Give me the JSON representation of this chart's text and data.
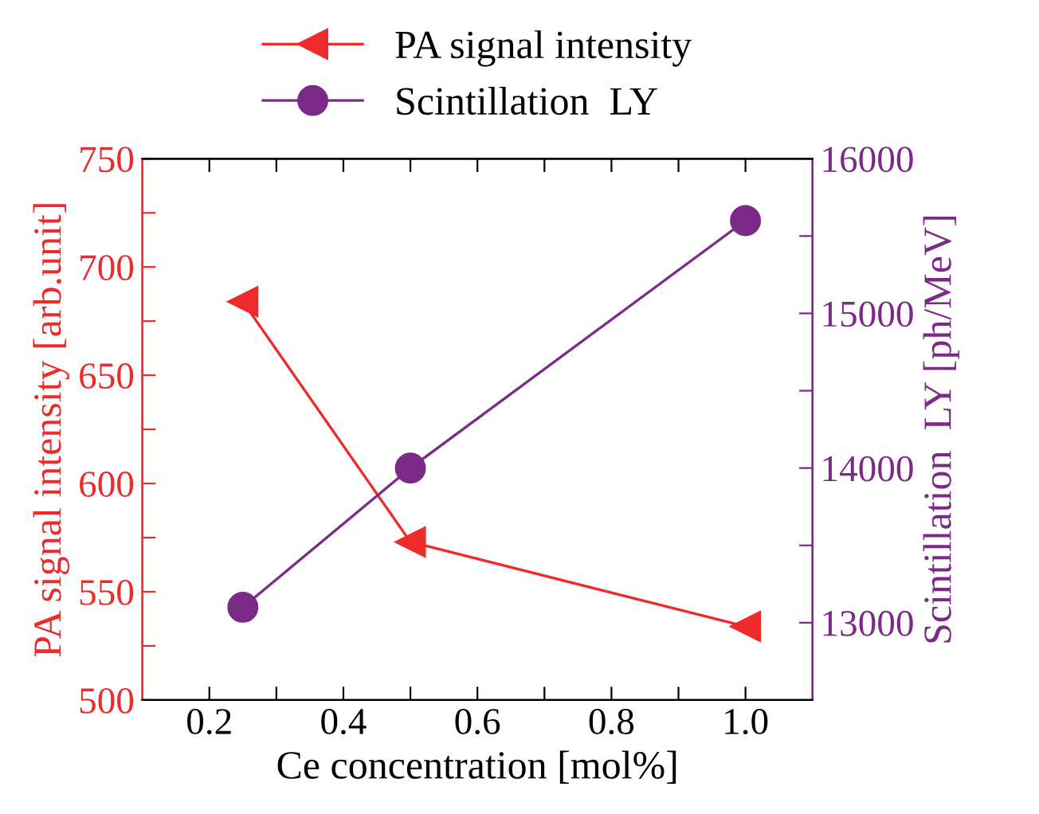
{
  "chart_data": {
    "type": "line",
    "xlabel": "Ce concentration [mol%]",
    "ylabel": "PA signal intensity [arb.unit]",
    "y2label": "Scintillation  LY [ph/MeV]",
    "x": [
      0.25,
      0.5,
      1.0
    ],
    "series": [
      {
        "name": "PA signal intensity",
        "color": "#ee2a2a",
        "values": [
          684,
          573,
          534
        ],
        "marker": "triangle",
        "axis": "y"
      },
      {
        "name": "Scintillation  LY",
        "color": "#7b2a87",
        "values": [
          13100,
          14000,
          15600
        ],
        "marker": "circle",
        "axis": "y2"
      }
    ],
    "xlim": [
      0.1,
      1.1
    ],
    "xticks": [
      0.2,
      {
        "value": 0.3,
        "label": null
      },
      0.4,
      {
        "value": 0.5,
        "label": null
      },
      0.6,
      {
        "value": 0.7,
        "label": null
      },
      0.8,
      {
        "value": 0.9,
        "label": null
      },
      {
        "value": 1.0,
        "label": "1.0"
      }
    ],
    "ylim": [
      500,
      750
    ],
    "yticks": [
      500,
      {
        "value": 525,
        "label": null
      },
      550,
      {
        "value": 575,
        "label": null
      },
      600,
      {
        "value": 625,
        "label": null
      },
      650,
      {
        "value": 675,
        "label": null
      },
      700,
      {
        "value": 725,
        "label": null
      },
      750
    ],
    "y2lim": [
      12500,
      16000
    ],
    "y2ticks": [
      {
        "value": 12500,
        "label": null
      },
      13000,
      {
        "value": 13500,
        "label": null
      },
      14000,
      {
        "value": 14500,
        "label": null
      },
      15000,
      {
        "value": 15500,
        "label": null
      },
      16000
    ],
    "grid": false,
    "legend": "top",
    "line_style": "solid"
  }
}
